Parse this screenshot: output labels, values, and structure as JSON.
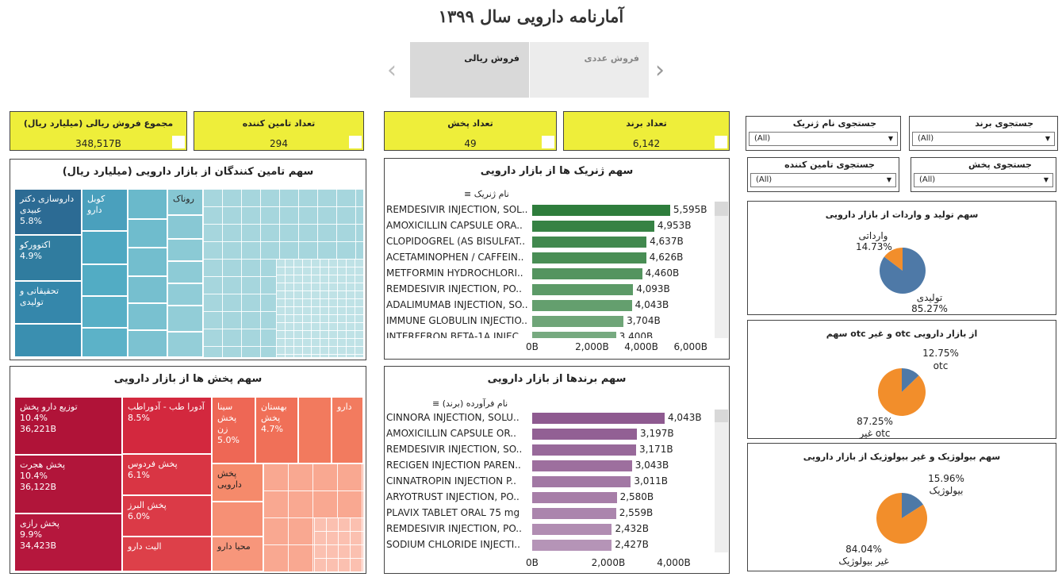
{
  "header": {
    "title": "آمارنامه دارویی سال ۱۳۹۹"
  },
  "tabs": [
    {
      "label": "فروش ریالی",
      "active": true
    },
    {
      "label": "فروش عددی",
      "active": false
    }
  ],
  "kpis": [
    {
      "label": "مجموع فروش ریالی (میلیارد ریال)",
      "value": "348,517B"
    },
    {
      "label": "تعداد تامین کننده",
      "value": "294"
    },
    {
      "label": "تعداد پخش",
      "value": "49"
    },
    {
      "label": "تعداد برند",
      "value": "6,142"
    }
  ],
  "filters": [
    {
      "label": "جستجوی برند",
      "value": "(All)"
    },
    {
      "label": "جستجوی نام ژنریک",
      "value": "(All)"
    },
    {
      "label": "جستجوی پخش",
      "value": "(All)"
    },
    {
      "label": "جستجوی تامین کننده",
      "value": "(All)"
    }
  ],
  "supplier_treemap": {
    "title": "سهم تامین کنندگان از بازار دارویی (میلیارد ریال)",
    "labeled": [
      {
        "name": "داروسازی دکتر عبیدی",
        "pct": "5.8%"
      },
      {
        "name": "اکتووركو",
        "pct": "4.9%"
      },
      {
        "name": "تحقیقاتی و تولیدی",
        "pct": ""
      },
      {
        "name": "کوبل دارو",
        "pct": ""
      },
      {
        "name": "روناک",
        "pct": ""
      }
    ]
  },
  "distributor_treemap": {
    "title": "سهم پخش ها از بازار دارویی",
    "labeled": [
      {
        "name": "توزیع دارو پخش",
        "pct": "10.4%",
        "value": "36,221B"
      },
      {
        "name": "پخش هجرت",
        "pct": "10.4%",
        "value": "36,122B"
      },
      {
        "name": "پخش رازی",
        "pct": "9.9%",
        "value": "34,423B"
      },
      {
        "name": "آدورا طب - آدوراطب",
        "pct": "8.5%",
        "value": ""
      },
      {
        "name": "پخش فردوس",
        "pct": "6.1%",
        "value": ""
      },
      {
        "name": "پخش البرز",
        "pct": "6.0%",
        "value": ""
      },
      {
        "name": "الیت دارو",
        "pct": "",
        "value": ""
      },
      {
        "name": "سینا پخش زن",
        "pct": "5.0%",
        "value": ""
      },
      {
        "name": "بهستان پخش",
        "pct": "4.7%",
        "value": ""
      },
      {
        "name": "دارو",
        "pct": "",
        "value": ""
      },
      {
        "name": "پخش دارویی",
        "pct": "",
        "value": ""
      },
      {
        "name": "محیا دارو",
        "pct": "",
        "value": ""
      }
    ]
  },
  "generic_chart": {
    "title": "سهم ژنریک ها از بازار دارویی",
    "sort_label": "نام ژنریک",
    "chart_data": {
      "type": "bar",
      "categories": [
        "REMDESIVIR INJECTION, SOL..",
        "AMOXICILLIN CAPSULE ORA..",
        "CLOPIDOGREL (AS BISULFAT..",
        "ACETAMINOPHEN / CAFFEIN..",
        "METFORMIN HYDROCHLORI..",
        "REMDESIVIR INJECTION, PO..",
        "ADALIMUMAB INJECTION, SO..",
        "IMMUNE GLOBULIN INJECTIO..",
        "INTERFERON BETA-1A INJEC.."
      ],
      "values": [
        5595,
        4953,
        4637,
        4626,
        4460,
        4093,
        4043,
        3704,
        3400
      ],
      "value_labels": [
        "5,595B",
        "4,953B",
        "4,637B",
        "4,626B",
        "4,460B",
        "4,093B",
        "4,043B",
        "3,704B",
        "3,400B"
      ],
      "ticks": [
        "0B",
        "2,000B",
        "4,000B",
        "6,000B"
      ],
      "xlim": [
        0,
        6500
      ],
      "color": "#2e7d3c"
    }
  },
  "brand_chart": {
    "title": "سهم برندها از بازار دارویی",
    "sort_label": "نام فرآورده (برند)",
    "chart_data": {
      "type": "bar",
      "categories": [
        "CINNORA    INJECTION, SOLU..",
        "AMOXICILLIN    CAPSULE OR..",
        "REMDESIVIR    INJECTION, SO..",
        "RECIGEN    INJECTION PAREN..",
        "CINNATROPIN    INJECTION P..",
        "ARYOTRUST    INJECTION, PO..",
        "PLAVIX    TABLET ORAL 75 mg",
        "REMDESIVIR    INJECTION, PO..",
        "SODIUM CHLORIDE    INJECTI.."
      ],
      "values": [
        4043,
        3197,
        3171,
        3043,
        3011,
        2580,
        2559,
        2432,
        2427
      ],
      "value_labels": [
        "4,043B",
        "3,197B",
        "3,171B",
        "3,043B",
        "3,011B",
        "2,580B",
        "2,559B",
        "2,432B",
        "2,427B"
      ],
      "ticks": [
        "0B",
        "2,000B",
        "4,000B"
      ],
      "xlim": [
        0,
        4600
      ],
      "color": "#8e5a90"
    }
  },
  "pies": [
    {
      "title": "سهم تولید و واردات از بازار دارویی",
      "chart_data": {
        "type": "pie",
        "slices": [
          {
            "name": "تولیدی",
            "value": 85.27,
            "label": "85.27%",
            "color": "#4e79a7"
          },
          {
            "name": "وارداتی",
            "value": 14.73,
            "label": "14.73%",
            "color": "#f28e2b"
          }
        ]
      }
    },
    {
      "title": "از بازار دارویی otc و غیر otc سهم",
      "chart_data": {
        "type": "pie",
        "slices": [
          {
            "name": "otc",
            "value": 12.75,
            "label": "12.75%",
            "color": "#4e79a7"
          },
          {
            "name": "غیر otc",
            "value": 87.25,
            "label": "87.25%",
            "color": "#f28e2b"
          }
        ]
      }
    },
    {
      "title": "سهم بیولوژیک و غیر بیولوژیک از بازار دارویی",
      "chart_data": {
        "type": "pie",
        "slices": [
          {
            "name": "بیولوژیک",
            "value": 15.96,
            "label": "15.96%",
            "color": "#4e79a7"
          },
          {
            "name": "غیر بیولوژیک",
            "value": 84.04,
            "label": "84.04%",
            "color": "#f28e2b"
          }
        ]
      }
    }
  ]
}
